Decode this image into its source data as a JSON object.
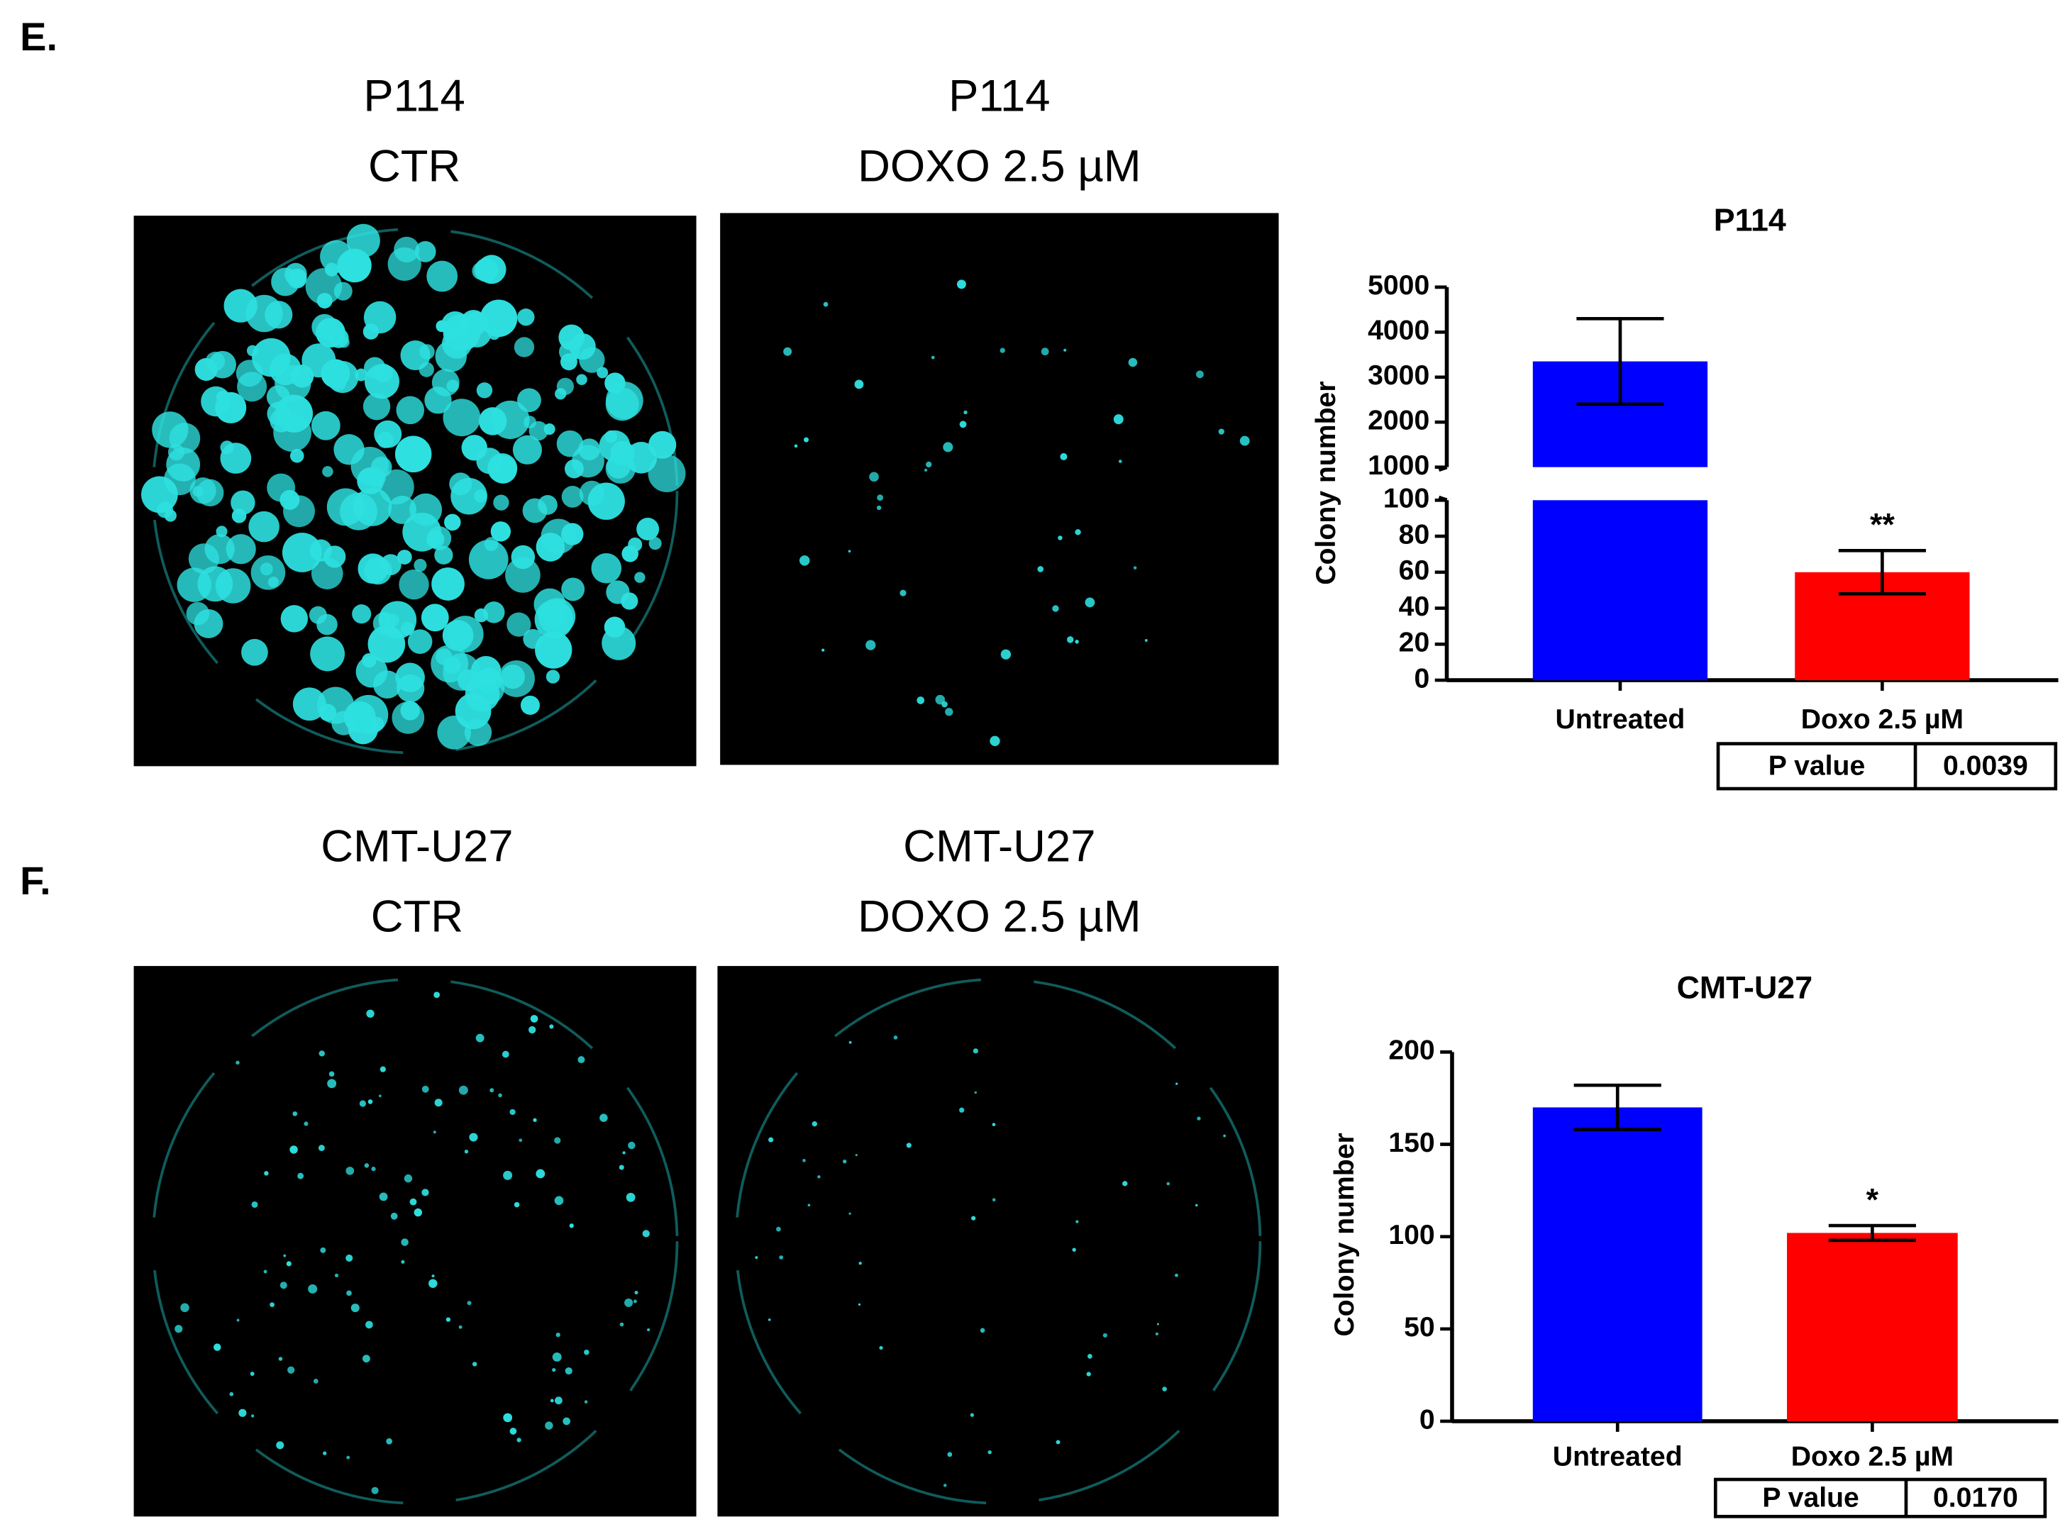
{
  "panel_labels": [
    "E.",
    "F."
  ],
  "image_titles": [
    [
      "P114",
      "CTR"
    ],
    [
      "P114",
      "DOXO 2.5 µM"
    ],
    [
      "CMT-U27",
      "CTR"
    ],
    [
      "CMT-U27",
      "DOXO 2.5 µM"
    ]
  ],
  "chart_data": [
    {
      "type": "bar",
      "title": "P114",
      "ylabel": "Colony number",
      "categories": [
        "Untreated",
        "Doxo 2.5 µM"
      ],
      "values": [
        3350,
        60
      ],
      "errors": [
        950,
        12
      ],
      "colors": [
        "#0000ff",
        "#ff0000"
      ],
      "annotation": "**",
      "ylim": [
        0,
        5000
      ],
      "ybreak": [
        100,
        1000
      ],
      "yticks": [
        0,
        20,
        40,
        60,
        80,
        100,
        1000,
        2000,
        3000,
        4000,
        5000
      ],
      "p_value_table": [
        "P value",
        "0.0039"
      ]
    },
    {
      "type": "bar",
      "title": "CMT-U27",
      "ylabel": "Colony number",
      "categories": [
        "Untreated",
        "Doxo 2.5 µM"
      ],
      "values": [
        170,
        102
      ],
      "errors": [
        12,
        4
      ],
      "colors": [
        "#0000ff",
        "#ff0000"
      ],
      "annotation": "*",
      "ylim": [
        0,
        200
      ],
      "yticks": [
        0,
        50,
        100,
        150,
        200
      ],
      "p_value_table": [
        "P value",
        "0.0170"
      ]
    }
  ]
}
